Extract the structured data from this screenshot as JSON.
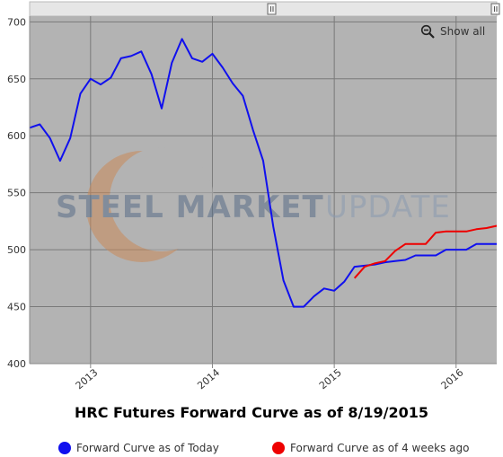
{
  "title": "HRC Futures Forward Curve as of 8/19/2015",
  "show_all_label": "Show all",
  "watermark": {
    "text_1": "STEEL MARKET",
    "text_2": "UPDATE"
  },
  "colors": {
    "plot_bg": "#b3b3b3",
    "grid": "#777777",
    "today": "#1010ee",
    "ago": "#ee0000",
    "navigator_bg": "#e6e6e6"
  },
  "chart_data": {
    "type": "line",
    "title": "HRC Futures Forward Curve as of 8/19/2015",
    "x_ticks": [
      "2013",
      "2014",
      "2015",
      "2016"
    ],
    "y_ticks": [
      400,
      450,
      500,
      550,
      600,
      650,
      700
    ],
    "ylim": [
      400,
      705
    ],
    "xlim": [
      "2012-07",
      "2016-05"
    ],
    "grid": true,
    "legend_position": "bottom",
    "series": [
      {
        "name": "Forward Curve as of Today",
        "color": "#1010ee",
        "x": [
          "2012-07",
          "2012-08",
          "2012-09",
          "2012-10",
          "2012-11",
          "2012-12",
          "2013-01",
          "2013-02",
          "2013-03",
          "2013-04",
          "2013-05",
          "2013-06",
          "2013-07",
          "2013-08",
          "2013-09",
          "2013-10",
          "2013-11",
          "2013-12",
          "2014-01",
          "2014-02",
          "2014-03",
          "2014-04",
          "2014-05",
          "2014-06",
          "2014-07",
          "2014-08",
          "2014-09",
          "2014-10",
          "2014-11",
          "2014-12",
          "2015-01",
          "2015-02",
          "2015-03",
          "2015-04",
          "2015-05",
          "2015-06",
          "2015-07",
          "2015-08",
          "2015-09",
          "2015-10",
          "2015-11",
          "2015-12",
          "2016-01",
          "2016-02",
          "2016-03",
          "2016-04",
          "2016-05"
        ],
        "values": [
          607,
          610,
          598,
          578,
          598,
          637,
          650,
          645,
          651,
          668,
          670,
          674,
          654,
          624,
          664,
          685,
          668,
          665,
          672,
          660,
          646,
          635,
          605,
          578,
          520,
          473,
          450,
          450,
          459,
          466,
          464,
          472,
          485,
          486,
          487,
          489,
          490,
          491,
          495,
          495,
          495,
          500,
          500,
          500,
          505,
          505,
          505
        ]
      },
      {
        "name": "Forward Curve as of 4 weeks ago",
        "color": "#ee0000",
        "x": [
          "2015-03",
          "2015-04",
          "2015-05",
          "2015-06",
          "2015-07",
          "2015-08",
          "2015-09",
          "2015-10",
          "2015-11",
          "2015-12",
          "2016-01",
          "2016-02",
          "2016-03",
          "2016-04",
          "2016-05"
        ],
        "values": [
          475,
          485,
          488,
          490,
          499,
          505,
          505,
          505,
          515,
          516,
          516,
          516,
          518,
          519,
          521
        ]
      }
    ]
  },
  "legend": [
    {
      "label": "Forward Curve as of Today",
      "color": "#1010ee"
    },
    {
      "label": "Forward Curve as of 4 weeks ago",
      "color": "#ee0000"
    }
  ]
}
